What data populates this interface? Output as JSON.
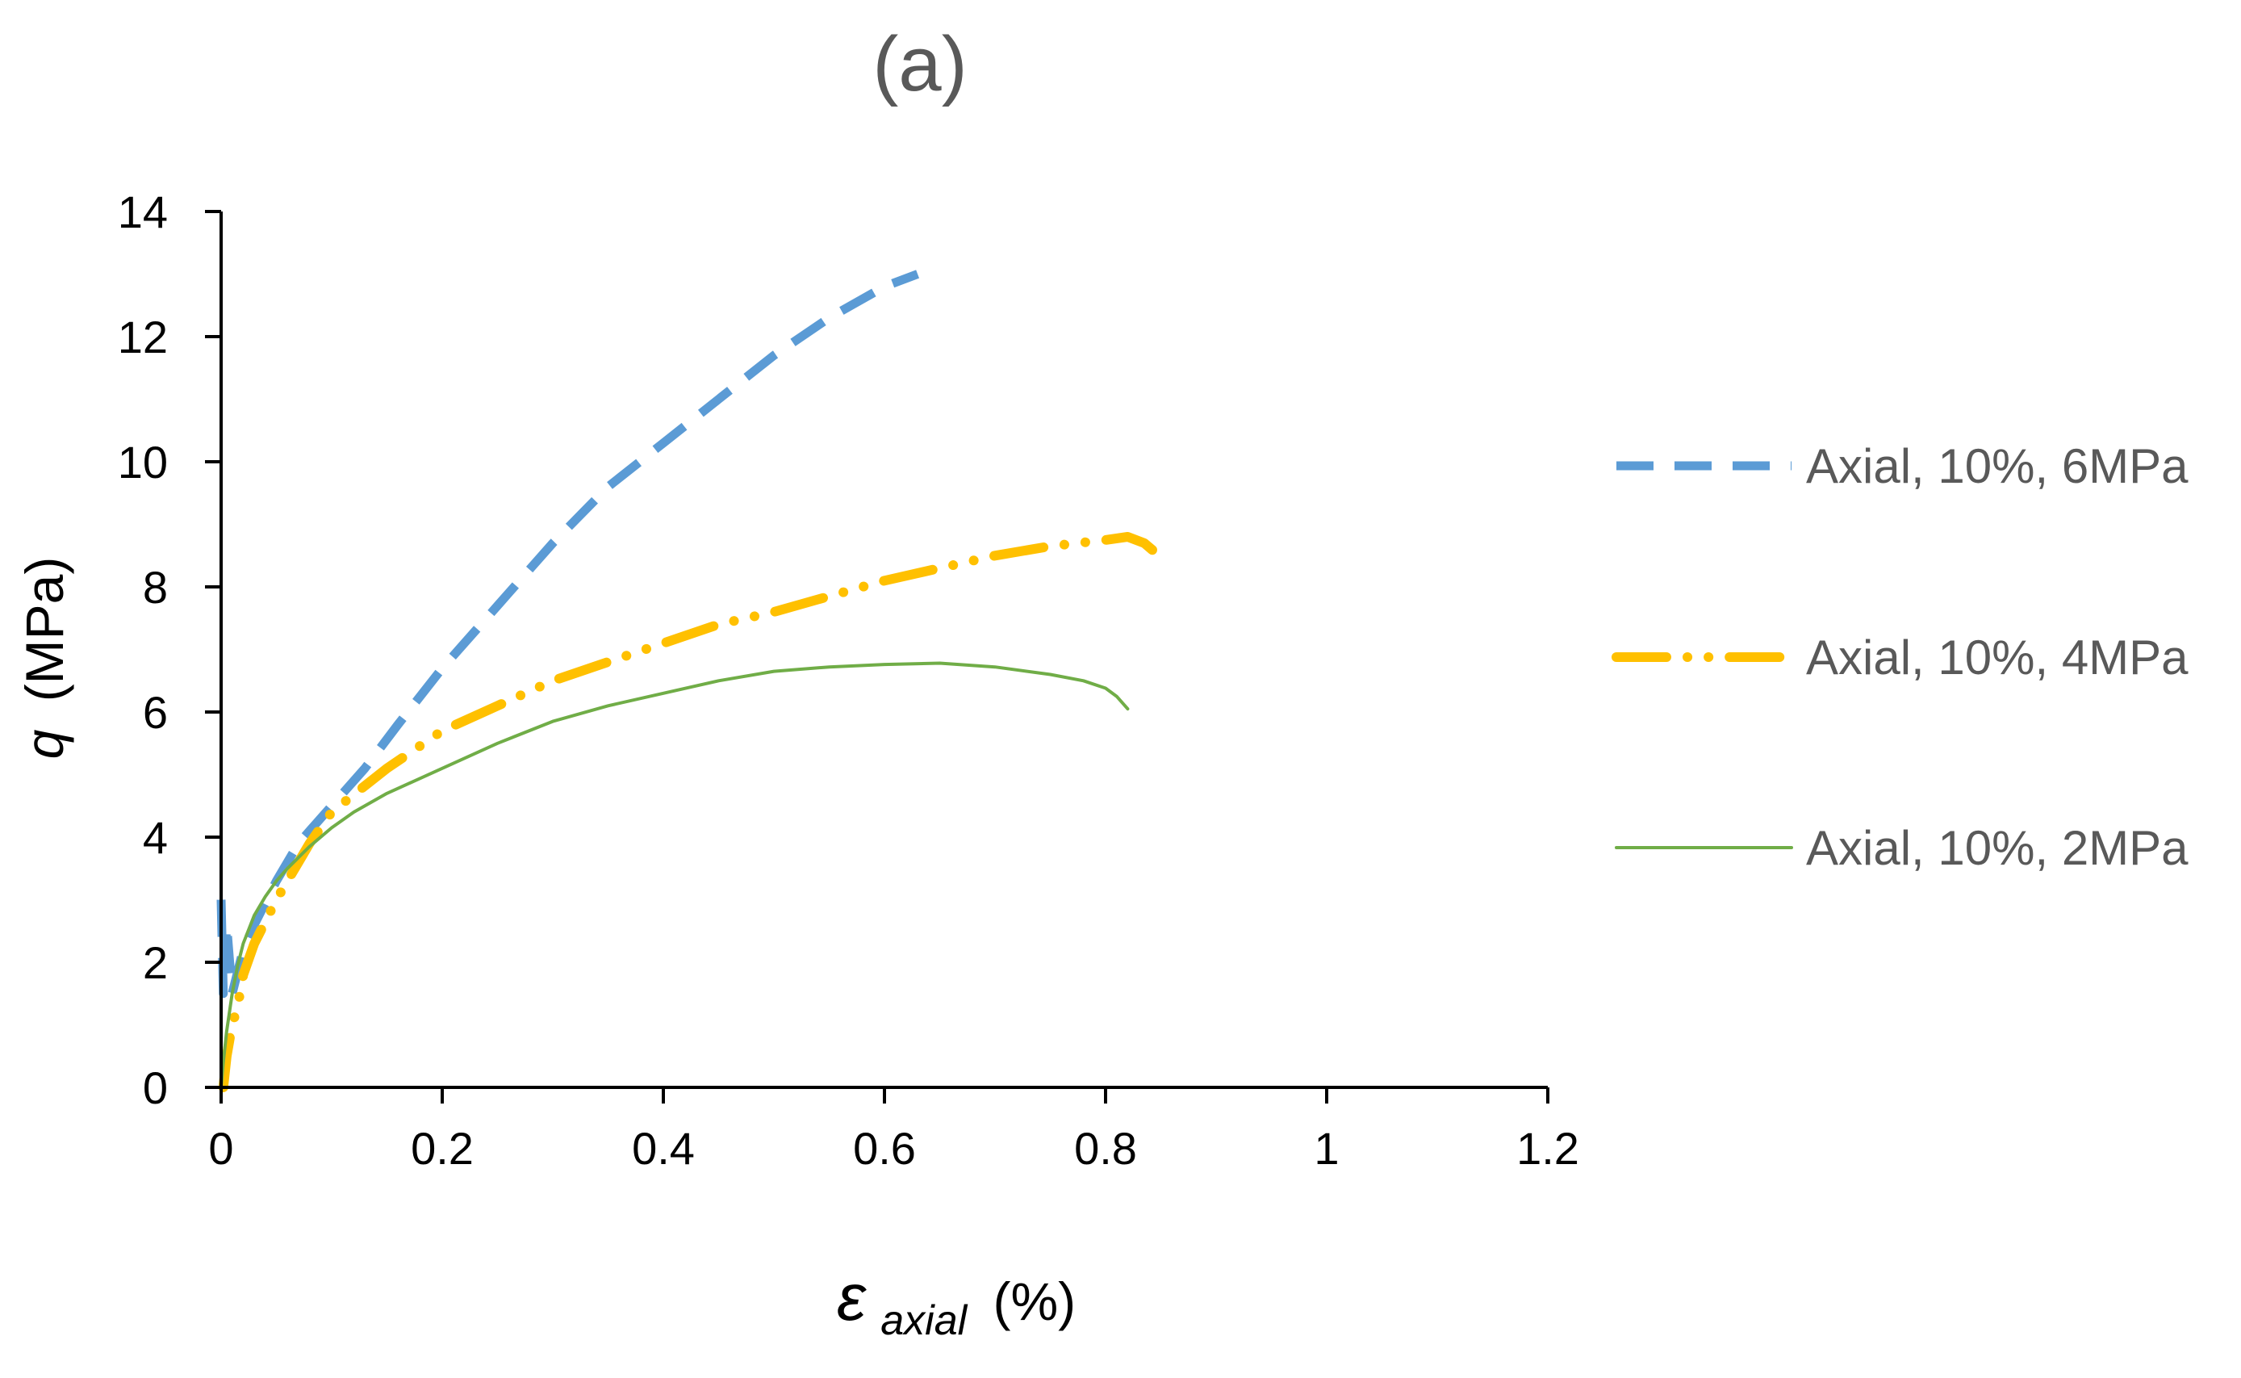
{
  "chart_data": {
    "type": "line",
    "title": "(a)",
    "xlabel": {
      "symbol": "ε",
      "subscript": "axial",
      "unit": "(%)"
    },
    "ylabel": {
      "symbol": "q",
      "unit": "(MPa)"
    },
    "xlim": [
      0,
      1.2
    ],
    "ylim": [
      0,
      14
    ],
    "xticks": [
      0,
      0.2,
      0.4,
      0.6,
      0.8,
      1,
      1.2
    ],
    "xtick_labels": [
      "0",
      "0.2",
      "0.4",
      "0.6",
      "0.8",
      "1",
      "1.2"
    ],
    "yticks": [
      0,
      2,
      4,
      6,
      8,
      10,
      12,
      14
    ],
    "ytick_labels": [
      "0",
      "2",
      "4",
      "6",
      "8",
      "10",
      "12",
      "14"
    ],
    "grid": false,
    "legend_position": "right",
    "series": [
      {
        "name": "Axial, 10%, 6MPa",
        "color": "#5B9BD5",
        "style": "dashed",
        "x": [
          0,
          0.002,
          0.005,
          0.01,
          0.02,
          0.03,
          0.05,
          0.07,
          0.1,
          0.13,
          0.16,
          0.2,
          0.25,
          0.3,
          0.35,
          0.4,
          0.45,
          0.5,
          0.55,
          0.6,
          0.63
        ],
        "y": [
          3.0,
          1.5,
          2.6,
          1.5,
          2.2,
          2.6,
          3.3,
          3.9,
          4.5,
          5.1,
          5.8,
          6.7,
          7.7,
          8.7,
          9.6,
          10.3,
          11.0,
          11.7,
          12.3,
          12.8,
          13.0
        ]
      },
      {
        "name": "Axial, 10%, 4MPa",
        "color": "#FFC000",
        "style": "dash-dot-dot",
        "x": [
          0.002,
          0.005,
          0.01,
          0.015,
          0.02,
          0.03,
          0.05,
          0.08,
          0.1,
          0.15,
          0.2,
          0.25,
          0.3,
          0.35,
          0.4,
          0.45,
          0.5,
          0.55,
          0.6,
          0.65,
          0.7,
          0.75,
          0.8,
          0.82,
          0.835,
          0.845,
          0.846
        ],
        "y": [
          0.0,
          0.5,
          1.0,
          1.3,
          1.8,
          2.3,
          3.0,
          3.9,
          4.4,
          5.1,
          5.7,
          6.1,
          6.5,
          6.8,
          7.1,
          7.4,
          7.6,
          7.85,
          8.1,
          8.3,
          8.5,
          8.65,
          8.75,
          8.8,
          8.7,
          8.55,
          8.35
        ]
      },
      {
        "name": "Axial, 10%, 2MPa",
        "color": "#70AD47",
        "style": "solid",
        "x": [
          0.0,
          0.002,
          0.005,
          0.01,
          0.015,
          0.02,
          0.03,
          0.04,
          0.05,
          0.06,
          0.08,
          0.1,
          0.12,
          0.15,
          0.2,
          0.25,
          0.3,
          0.35,
          0.4,
          0.45,
          0.5,
          0.55,
          0.6,
          0.65,
          0.7,
          0.75,
          0.78,
          0.8,
          0.81,
          0.82
        ],
        "y": [
          0.0,
          0.4,
          0.9,
          1.5,
          1.95,
          2.3,
          2.75,
          3.05,
          3.3,
          3.5,
          3.85,
          4.15,
          4.4,
          4.7,
          5.1,
          5.5,
          5.85,
          6.1,
          6.3,
          6.5,
          6.65,
          6.72,
          6.76,
          6.78,
          6.72,
          6.6,
          6.5,
          6.38,
          6.25,
          6.05
        ]
      }
    ]
  }
}
